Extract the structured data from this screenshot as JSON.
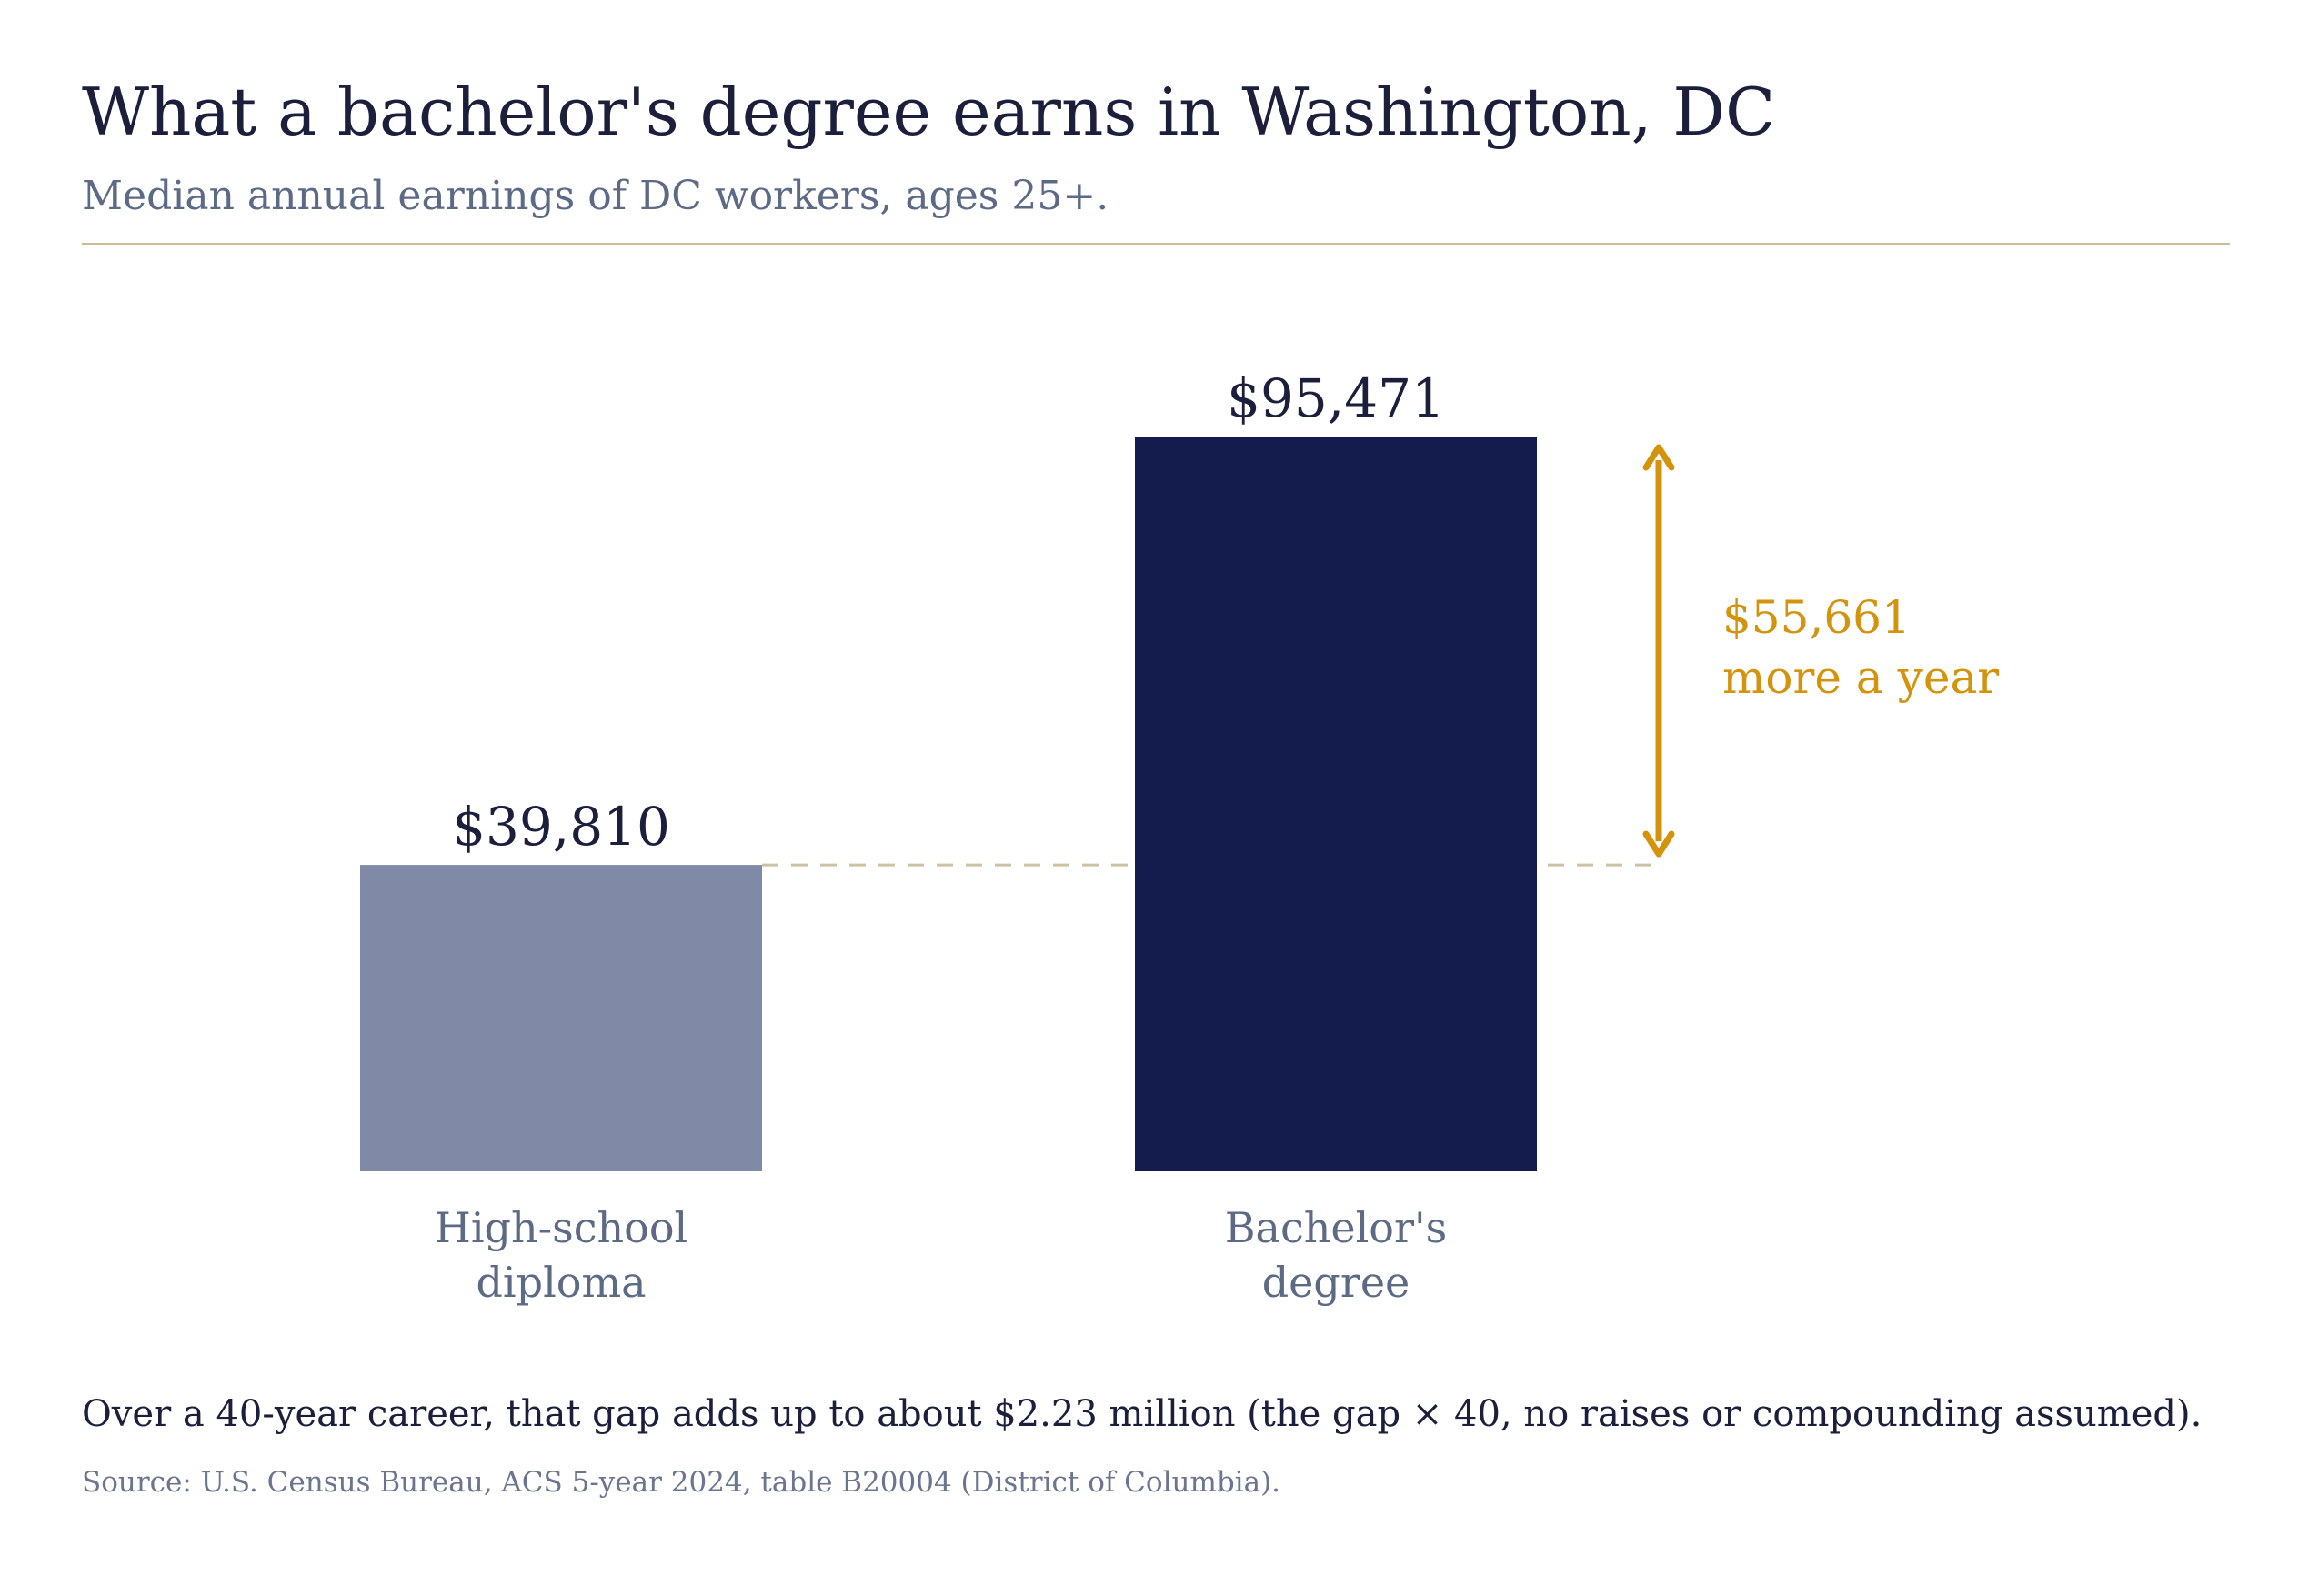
{
  "header": {
    "title": "What a bachelor's degree earns in Washington, DC",
    "subtitle": "Median annual earnings of DC workers, ages 25+."
  },
  "chart_data": {
    "type": "bar",
    "title": "What a bachelor's degree earns in Washington, DC",
    "subtitle": "Median annual earnings of DC workers, ages 25+.",
    "categories": [
      [
        "High-school",
        "diploma"
      ],
      [
        "Bachelor's",
        "degree"
      ]
    ],
    "values": [
      39810,
      95471
    ],
    "value_labels": [
      "$39,810",
      "$95,471"
    ],
    "bar_colors": [
      "#8089a6",
      "#131c4d"
    ],
    "xlabel": "",
    "ylabel": "",
    "ylim": [
      0,
      95471
    ],
    "grid": false,
    "annotation": {
      "value": 55661,
      "lines": [
        "$55,661",
        "more a year"
      ],
      "color": "#d4930d",
      "reference_line_color": "#c9c3a4"
    }
  },
  "footer": {
    "note": "Over a 40-year career, that gap adds up to about $2.23 million (the gap × 40, no raises or compounding assumed).",
    "source": "Source: U.S. Census Bureau, ACS 5-year 2024, table B20004 (District of Columbia)."
  },
  "colors": {
    "title": "#1b1f3b",
    "muted": "#5d6a85",
    "rule": "#cbb997",
    "accent": "#d4930d"
  }
}
